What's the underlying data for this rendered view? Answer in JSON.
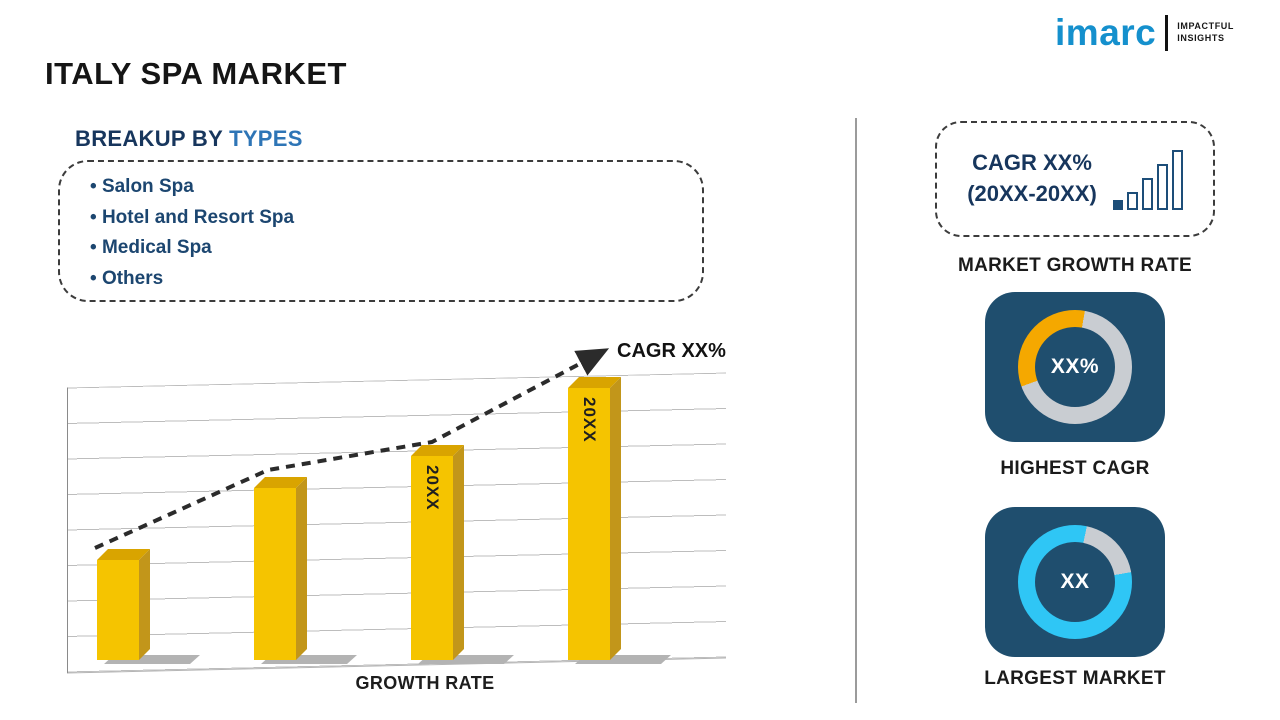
{
  "title": "ITALY SPA MARKET",
  "logo": {
    "brand": "imarc",
    "tagline1": "IMPACTFUL",
    "tagline2": "INSIGHTS"
  },
  "breakup": {
    "heading": "BREAKUP BY",
    "heading_highlight": "TYPES",
    "items": [
      "Salon Spa",
      "Hotel and Resort Spa",
      "Medical Spa",
      "Others"
    ]
  },
  "chart": {
    "cagr_label": "CAGR XX%",
    "xlabel": "GROWTH RATE"
  },
  "chart_data": {
    "type": "bar",
    "categories": [
      "",
      "",
      "20XX",
      "20XX"
    ],
    "values": [
      25,
      43,
      51,
      68
    ],
    "bar_labels": [
      "",
      "",
      "20XX",
      "20XX"
    ],
    "title": "",
    "xlabel": "GROWTH RATE",
    "ylabel": "",
    "ylim": [
      0,
      75
    ],
    "grid": true,
    "annotations": [
      "CAGR XX%"
    ],
    "trend": "dashed ascending arrow"
  },
  "right_panel": {
    "cagr_box": {
      "line1": "CAGR XX%",
      "line2": "(20XX-20XX)"
    },
    "market_growth_label": "MARKET GROWTH RATE",
    "highest_cagr": {
      "value": "XX%",
      "label": "HIGHEST CAGR"
    },
    "largest_market": {
      "value": "XX",
      "label": "LARGEST MARKET"
    }
  },
  "colors": {
    "bar_gold": "#F5C400",
    "bar_side": "#C2961A",
    "bar_top": "#D9A400",
    "accent_navy": "#17365D",
    "accent_blue": "#2E75B6",
    "list_navy": "#1C4670",
    "card_bg": "#1F4E6E",
    "donut_orange": "#F5A800",
    "donut_gray": "#C9CDD2",
    "donut_cyan": "#2FC6F5",
    "logo_blue": "#1590CD"
  }
}
